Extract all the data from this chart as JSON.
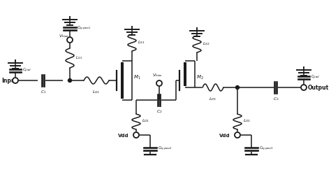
{
  "bg_color": "#ffffff",
  "line_color": "#1a1a1a",
  "line_width": 1.1,
  "figsize": [
    4.74,
    2.43
  ],
  "dpi": 100,
  "xlim": [
    0,
    474
  ],
  "ylim": [
    0,
    243
  ]
}
